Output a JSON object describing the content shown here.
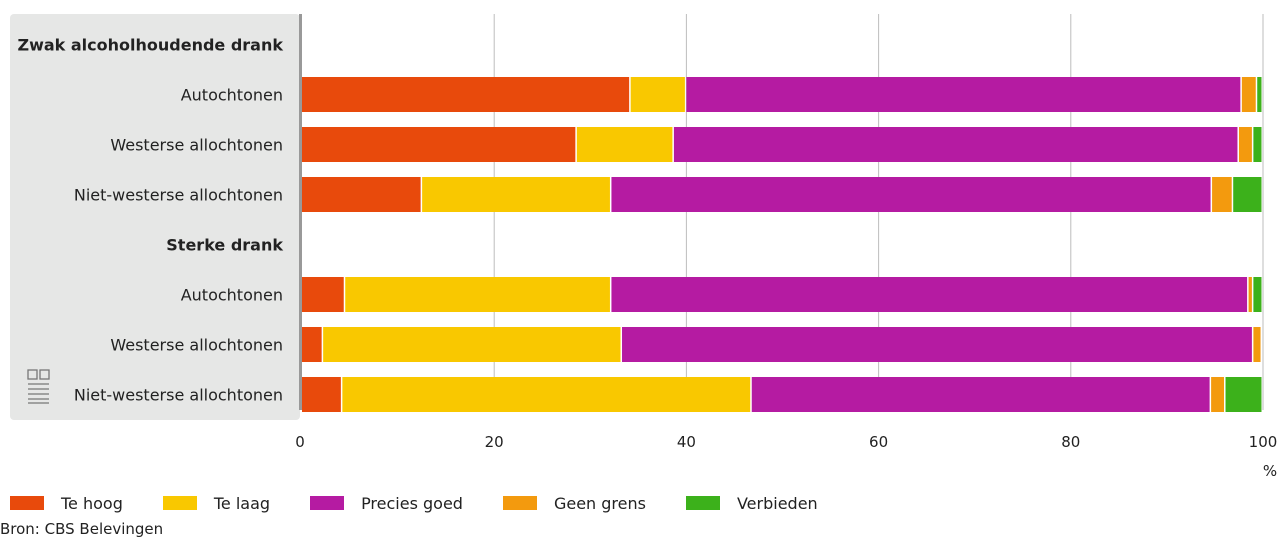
{
  "chart_data": {
    "type": "bar",
    "orientation": "horizontal",
    "stacked": true,
    "unit": "%",
    "xlim": [
      0,
      100
    ],
    "xticks": [
      0,
      20,
      40,
      60,
      80,
      100
    ],
    "grid": true,
    "legend_position": "bottom",
    "rows": [
      {
        "label": "Zwak alcoholhoudende drank",
        "group": true
      },
      {
        "label": "Autochtonen",
        "values": [
          34.2,
          5.8,
          57.8,
          1.6,
          0.6
        ]
      },
      {
        "label": "Westerse allochtonen",
        "values": [
          28.6,
          10.1,
          58.8,
          1.5,
          1.0
        ]
      },
      {
        "label": "Niet-westerse allochtonen",
        "values": [
          12.5,
          19.7,
          62.5,
          2.2,
          3.1
        ]
      },
      {
        "label": "Sterke drank",
        "group": true
      },
      {
        "label": "Autochtonen",
        "values": [
          4.5,
          27.7,
          66.3,
          0.5,
          1.0
        ]
      },
      {
        "label": "Westerse allochtonen",
        "values": [
          2.2,
          31.1,
          65.7,
          0.9,
          0.1
        ]
      },
      {
        "label": "Niet-westerse allochtonen",
        "values": [
          4.2,
          42.6,
          47.8,
          1.5,
          3.9
        ]
      }
    ],
    "series": [
      {
        "name": "Te hoog",
        "color": "#e84a0c"
      },
      {
        "name": "Te laag",
        "color": "#f9c800"
      },
      {
        "name": "Precies goed",
        "color": "#b51ba2"
      },
      {
        "name": "Geen grens",
        "color": "#f39a0e"
      },
      {
        "name": "Verbieden",
        "color": "#3cb11b"
      }
    ],
    "source": "Bron: CBS Belevingen"
  }
}
